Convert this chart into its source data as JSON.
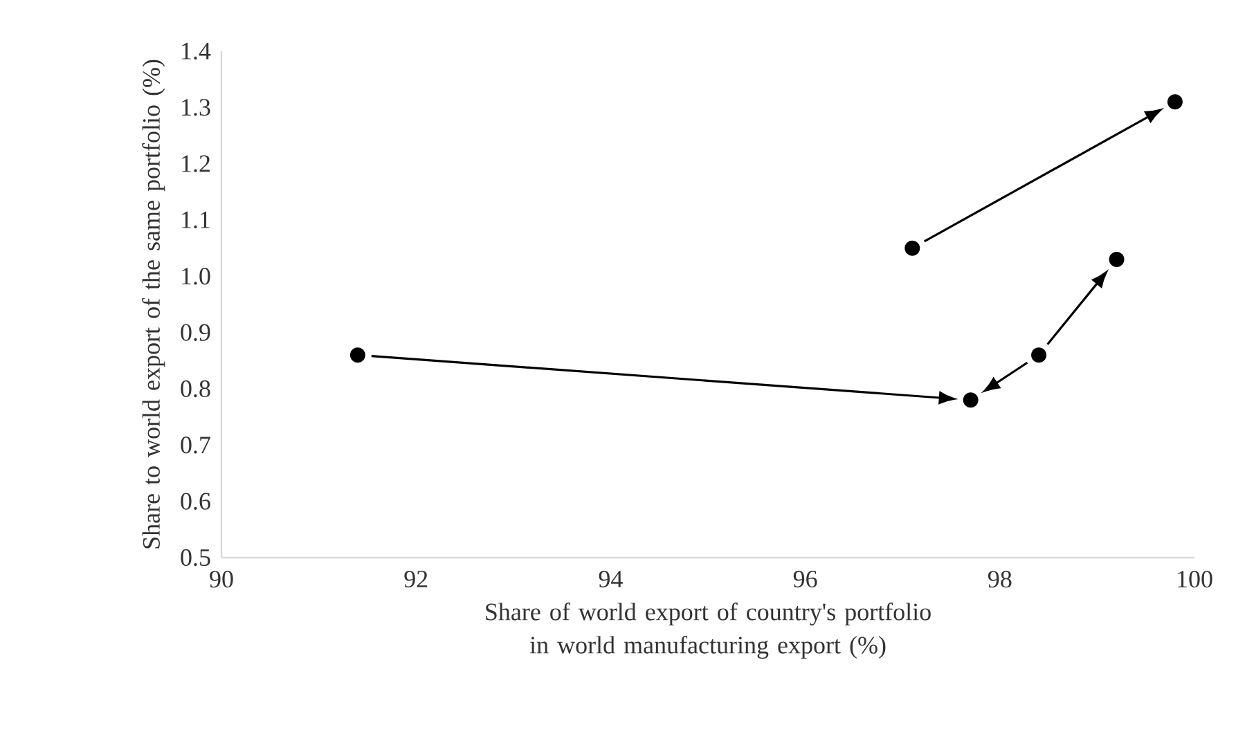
{
  "chart_data": {
    "type": "scatter",
    "xlabel": "Share of world export of country's portfolio in world manufacturing export (%)",
    "ylabel": "Share to world export of the same portfolio (%)",
    "x": [
      91.4,
      97.7,
      98.4,
      99.2,
      97.1,
      99.8
    ],
    "series": [
      {
        "color": "#000000",
        "values": [
          0.86,
          0.78,
          0.86,
          1.03,
          1.05,
          1.31
        ]
      }
    ],
    "xlim": [
      90,
      100
    ],
    "xticks": [
      90,
      92,
      94,
      96,
      98,
      100
    ],
    "ylim": [
      0.5,
      1.4
    ],
    "yticks": [
      0.5,
      0.6,
      0.7,
      0.8,
      0.9,
      {
        "value": 1.0,
        "label": "1.0"
      },
      1.1,
      1.2,
      1.3,
      1.4
    ],
    "marker": "circle"
  }
}
